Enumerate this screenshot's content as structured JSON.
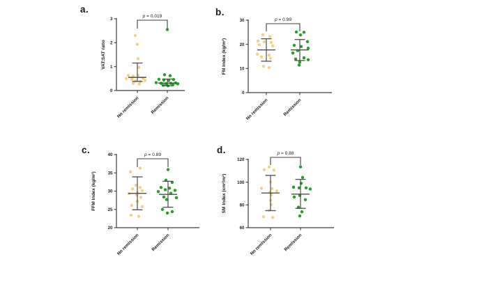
{
  "figure": {
    "groups": [
      "No remission",
      "Remission"
    ],
    "point_format": "[x_jitter_px, value]",
    "colors": {
      "no_remission": "#F7CF86",
      "remission": "#22A122",
      "error_bar": "#4D4D4D",
      "axis": "#3C3C3C",
      "text": "#1A1A1A"
    }
  },
  "chart_data": [
    {
      "id": "a",
      "type": "scatter",
      "panel_label": "a.",
      "p_value": "p = 0.019",
      "ylabel": "VAT:SAT ratio",
      "xlabel": "",
      "ylim": [
        0,
        3
      ],
      "yticks": [
        "0",
        "1",
        "2",
        "3"
      ],
      "categories": [
        "No remission",
        "Remission"
      ],
      "series": [
        {
          "name": "No remission",
          "color_key": "no_remission",
          "center": 0.55,
          "upper": 1.15,
          "lower": 0.38,
          "points": [
            [
              -3,
              2.3
            ],
            [
              0,
              1.93
            ],
            [
              1,
              1.33
            ],
            [
              2,
              0.97
            ],
            [
              -13,
              0.63
            ],
            [
              -6,
              0.6
            ],
            [
              1,
              0.64
            ],
            [
              -16,
              0.5
            ],
            [
              -8,
              0.47
            ],
            [
              8,
              0.52
            ],
            [
              -3,
              0.4
            ],
            [
              4,
              0.38
            ],
            [
              11,
              0.42
            ],
            [
              -6,
              0.3
            ],
            [
              3,
              0.27
            ]
          ]
        },
        {
          "name": "Remission",
          "color_key": "remission",
          "center": 0.31,
          "upper": 0.48,
          "lower": 0.2,
          "points": [
            [
              0,
              2.55
            ],
            [
              -4,
              0.66
            ],
            [
              4,
              0.62
            ],
            [
              -12,
              0.47
            ],
            [
              -5,
              0.44
            ],
            [
              2,
              0.42
            ],
            [
              9,
              0.46
            ],
            [
              -16,
              0.33
            ],
            [
              -9,
              0.3
            ],
            [
              -2,
              0.28
            ],
            [
              5,
              0.3
            ],
            [
              12,
              0.32
            ],
            [
              -6,
              0.22
            ],
            [
              1,
              0.2
            ],
            [
              8,
              0.24
            ],
            [
              15,
              0.28
            ]
          ]
        }
      ]
    },
    {
      "id": "b",
      "type": "scatter",
      "panel_label": "b.",
      "p_value": "p = 0.99",
      "ylabel": "FM Index (kg/m²)",
      "xlabel": "",
      "ylim": [
        0,
        30
      ],
      "yticks": [
        "0",
        "10",
        "20",
        "30"
      ],
      "categories": [
        "No remission",
        "Remission"
      ],
      "series": [
        {
          "name": "No remission",
          "color_key": "no_remission",
          "center": 17.7,
          "upper": 22.3,
          "lower": 13.0,
          "points": [
            [
              -5,
              24.0
            ],
            [
              5,
              23.2
            ],
            [
              -12,
              21.4
            ],
            [
              -3,
              21.0
            ],
            [
              7,
              20.8
            ],
            [
              -10,
              19.8
            ],
            [
              9,
              19.4
            ],
            [
              -13,
              15.9
            ],
            [
              4,
              15.5
            ],
            [
              -7,
              14.8
            ],
            [
              6,
              14.2
            ],
            [
              -4,
              10.9
            ],
            [
              4,
              10.4
            ]
          ]
        },
        {
          "name": "Remission",
          "color_key": "remission",
          "center": 17.7,
          "upper": 22.0,
          "lower": 13.3,
          "points": [
            [
              -5,
              25.1
            ],
            [
              6,
              25.0
            ],
            [
              1,
              23.9
            ],
            [
              11,
              21.1
            ],
            [
              -8,
              19.6
            ],
            [
              2,
              19.1
            ],
            [
              12,
              18.4
            ],
            [
              -3,
              17.4
            ],
            [
              -10,
              16.4
            ],
            [
              6,
              14.4
            ],
            [
              -6,
              13.9
            ],
            [
              12,
              13.6
            ],
            [
              0,
              12.6
            ],
            [
              -1,
              11.4
            ]
          ]
        }
      ]
    },
    {
      "id": "c",
      "type": "scatter",
      "panel_label": "c.",
      "p_value": "p = 0.89",
      "ylabel": "FFM Index (kg/m²)",
      "xlabel": "",
      "ylim": [
        20,
        40
      ],
      "yticks": [
        "20",
        "25",
        "30",
        "35",
        "40"
      ],
      "categories": [
        "No remission",
        "Remission"
      ],
      "series": [
        {
          "name": "No remission",
          "color_key": "no_remission",
          "center": 29.4,
          "upper": 33.9,
          "lower": 24.9,
          "points": [
            [
              4,
              36.3
            ],
            [
              -10,
              35.3
            ],
            [
              -2,
              31.6
            ],
            [
              4,
              31.0
            ],
            [
              -7,
              30.6
            ],
            [
              7,
              30.1
            ],
            [
              0,
              29.6
            ],
            [
              -12,
              29.3
            ],
            [
              -1,
              28.9
            ],
            [
              5,
              28.3
            ],
            [
              0,
              27.2
            ],
            [
              -8,
              26.1
            ],
            [
              7,
              25.8
            ],
            [
              -9,
              23.4
            ],
            [
              2,
              23.1
            ]
          ]
        },
        {
          "name": "Remission",
          "color_key": "remission",
          "center": 29.1,
          "upper": 32.7,
          "lower": 25.6,
          "points": [
            [
              0,
              35.9
            ],
            [
              -3,
              33.0
            ],
            [
              6,
              32.4
            ],
            [
              -10,
              31.0
            ],
            [
              2,
              30.8
            ],
            [
              -4,
              30.4
            ],
            [
              10,
              30.2
            ],
            [
              -14,
              29.9
            ],
            [
              4,
              29.4
            ],
            [
              -6,
              28.4
            ],
            [
              12,
              28.2
            ],
            [
              -2,
              27.7
            ],
            [
              -8,
              25.0
            ],
            [
              6,
              24.4
            ],
            [
              -1,
              24.0
            ]
          ]
        }
      ]
    },
    {
      "id": "d",
      "type": "scatter",
      "panel_label": "d.",
      "p_value": "p = 0.88",
      "ylabel": "SM Index (cm²/m²)",
      "xlabel": "",
      "ylim": [
        60,
        120
      ],
      "yticks": [
        "60",
        "80",
        "100",
        "120"
      ],
      "categories": [
        "No remission",
        "Remission"
      ],
      "series": [
        {
          "name": "No remission",
          "color_key": "no_remission",
          "center": 90.5,
          "upper": 106.0,
          "lower": 75.0,
          "points": [
            [
              -2,
              113.4
            ],
            [
              -9,
              111.0
            ],
            [
              5,
              110.6
            ],
            [
              0,
              100.2
            ],
            [
              -13,
              94.6
            ],
            [
              2,
              94.3
            ],
            [
              9,
              92.3
            ],
            [
              -1,
              91.0
            ],
            [
              1,
              88.8
            ],
            [
              0,
              84.0
            ],
            [
              1,
              80.3
            ],
            [
              -2,
              75.2
            ],
            [
              -10,
              69.6
            ],
            [
              3,
              69.0
            ]
          ]
        },
        {
          "name": "Remission",
          "color_key": "remission",
          "center": 89.5,
          "upper": 102.5,
          "lower": 77.0,
          "points": [
            [
              0,
              113.5
            ],
            [
              3,
              104.2
            ],
            [
              1,
              99.0
            ],
            [
              -10,
              95.6
            ],
            [
              -2,
              95.0
            ],
            [
              8,
              95.0
            ],
            [
              14,
              94.0
            ],
            [
              -1,
              88.3
            ],
            [
              -9,
              87.0
            ],
            [
              7,
              84.6
            ],
            [
              -3,
              78.0
            ],
            [
              2,
              74.0
            ],
            [
              -1,
              70.3
            ]
          ]
        }
      ]
    }
  ]
}
